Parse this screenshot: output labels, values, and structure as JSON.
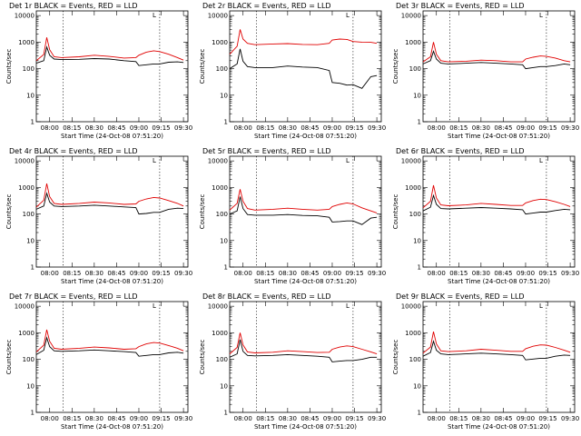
{
  "figure": {
    "x_axis_label": "Start Time (24-Oct-08 07:51:20)",
    "y_axis_label": "Counts/sec",
    "y_tick_labels": [
      "1",
      "10",
      "100",
      "1000",
      "10000"
    ],
    "time_tick_labels": [
      "08:00",
      "08:15",
      "08:30",
      "08:45",
      "09:00",
      "09:15",
      "09:30"
    ],
    "colors": {
      "events": "#000000",
      "lld": "#e00000",
      "axes": "#000000",
      "background": "#ffffff"
    }
  },
  "chart_data": [
    {
      "type": "line",
      "title": "Det 1r BLACK = Events, RED = LLD",
      "xlabel": "Start Time (24-Oct-08 07:51:20)",
      "ylabel": "Counts/sec",
      "x_range": [
        "07:51",
        "09:33"
      ],
      "y_scale": "log",
      "ylim": [
        1,
        15000
      ],
      "markers_top": [
        "L"
      ],
      "vertical_dotted_lines": [
        "08:09",
        "09:14"
      ],
      "x": [
        "07:51",
        "07:56",
        "07:58",
        "08:00",
        "08:03",
        "08:08",
        "08:20",
        "08:30",
        "08:40",
        "08:50",
        "08:58",
        "09:00",
        "09:05",
        "09:10",
        "09:14",
        "09:20",
        "09:26",
        "09:30"
      ],
      "series": [
        {
          "name": "Events",
          "values": [
            160,
            200,
            650,
            320,
            230,
            220,
            225,
            240,
            230,
            200,
            185,
            130,
            140,
            150,
            150,
            175,
            180,
            170
          ]
        },
        {
          "name": "LLD",
          "values": [
            200,
            340,
            1500,
            520,
            280,
            260,
            280,
            320,
            290,
            250,
            260,
            320,
            420,
            470,
            440,
            350,
            260,
            210
          ]
        }
      ]
    },
    {
      "type": "line",
      "title": "Det 2r BLACK = Events, RED = LLD",
      "xlabel": "Start Time (24-Oct-08 07:51:20)",
      "ylabel": "Counts/sec",
      "x_range": [
        "07:51",
        "09:33"
      ],
      "y_scale": "log",
      "ylim": [
        1,
        15000
      ],
      "markers_top": [
        "L"
      ],
      "vertical_dotted_lines": [
        "08:09",
        "09:14"
      ],
      "x": [
        "07:51",
        "07:56",
        "07:58",
        "08:00",
        "08:03",
        "08:08",
        "08:20",
        "08:30",
        "08:40",
        "08:50",
        "08:58",
        "09:00",
        "09:05",
        "09:10",
        "09:14",
        "09:20",
        "09:26",
        "09:30"
      ],
      "series": [
        {
          "name": "Events",
          "values": [
            100,
            150,
            550,
            190,
            120,
            110,
            110,
            125,
            115,
            110,
            85,
            30,
            28,
            24,
            25,
            18,
            50,
            55
          ]
        },
        {
          "name": "LLD",
          "values": [
            350,
            700,
            3000,
            1300,
            900,
            800,
            850,
            880,
            820,
            800,
            900,
            1200,
            1300,
            1250,
            1050,
            1000,
            980,
            900
          ]
        }
      ]
    },
    {
      "type": "line",
      "title": "Det 3r BLACK = Events, RED = LLD",
      "xlabel": "Start Time (24-Oct-08 07:51:20)",
      "ylabel": "Counts/sec",
      "x_range": [
        "07:51",
        "09:33"
      ],
      "y_scale": "log",
      "ylim": [
        1,
        15000
      ],
      "markers_top": [
        "L"
      ],
      "vertical_dotted_lines": [
        "08:09",
        "09:14"
      ],
      "x": [
        "07:51",
        "07:56",
        "07:58",
        "08:00",
        "08:03",
        "08:08",
        "08:20",
        "08:30",
        "08:40",
        "08:50",
        "08:58",
        "09:00",
        "09:05",
        "09:10",
        "09:14",
        "09:20",
        "09:26",
        "09:30"
      ],
      "series": [
        {
          "name": "Events",
          "values": [
            150,
            200,
            450,
            230,
            160,
            150,
            160,
            170,
            160,
            150,
            140,
            100,
            110,
            120,
            120,
            130,
            150,
            140
          ]
        },
        {
          "name": "LLD",
          "values": [
            180,
            280,
            1000,
            350,
            200,
            180,
            190,
            210,
            200,
            180,
            180,
            230,
            270,
            300,
            290,
            250,
            200,
            180
          ]
        }
      ]
    },
    {
      "type": "line",
      "title": "Det 4r BLACK = Events, RED = LLD",
      "xlabel": "Start Time (24-Oct-08 07:51:20)",
      "ylabel": "Counts/sec",
      "x_range": [
        "07:51",
        "09:33"
      ],
      "y_scale": "log",
      "ylim": [
        1,
        15000
      ],
      "markers_top": [
        "L"
      ],
      "vertical_dotted_lines": [
        "08:09",
        "09:14"
      ],
      "x": [
        "07:51",
        "07:56",
        "07:58",
        "08:00",
        "08:03",
        "08:08",
        "08:20",
        "08:30",
        "08:40",
        "08:50",
        "08:58",
        "09:00",
        "09:05",
        "09:10",
        "09:14",
        "09:20",
        "09:26",
        "09:30"
      ],
      "series": [
        {
          "name": "Events",
          "values": [
            150,
            200,
            600,
            280,
            200,
            190,
            200,
            215,
            200,
            185,
            175,
            100,
            105,
            115,
            115,
            150,
            165,
            160
          ]
        },
        {
          "name": "LLD",
          "values": [
            180,
            330,
            1400,
            450,
            250,
            230,
            250,
            280,
            260,
            230,
            240,
            300,
            370,
            420,
            400,
            320,
            250,
            200
          ]
        }
      ]
    },
    {
      "type": "line",
      "title": "Det 5r BLACK = Events, RED = LLD",
      "xlabel": "Start Time (24-Oct-08 07:51:20)",
      "ylabel": "Counts/sec",
      "x_range": [
        "07:51",
        "09:33"
      ],
      "y_scale": "log",
      "ylim": [
        1,
        15000
      ],
      "markers_top": [
        "L"
      ],
      "vertical_dotted_lines": [
        "08:09",
        "09:14"
      ],
      "x": [
        "07:51",
        "07:56",
        "07:58",
        "08:00",
        "08:03",
        "08:08",
        "08:20",
        "08:30",
        "08:40",
        "08:50",
        "08:58",
        "09:00",
        "09:05",
        "09:10",
        "09:14",
        "09:20",
        "09:26",
        "09:30"
      ],
      "series": [
        {
          "name": "Events",
          "values": [
            100,
            130,
            450,
            160,
            95,
            90,
            90,
            95,
            88,
            85,
            75,
            50,
            52,
            55,
            55,
            40,
            70,
            75
          ]
        },
        {
          "name": "LLD",
          "values": [
            140,
            250,
            850,
            300,
            160,
            140,
            150,
            165,
            150,
            140,
            150,
            190,
            230,
            260,
            240,
            170,
            130,
            110
          ]
        }
      ]
    },
    {
      "type": "line",
      "title": "Det 6r BLACK = Events, RED = LLD",
      "xlabel": "Start Time (24-Oct-08 07:51:20)",
      "ylabel": "Counts/sec",
      "x_range": [
        "07:51",
        "09:33"
      ],
      "y_scale": "log",
      "ylim": [
        1,
        15000
      ],
      "markers_top": [
        "L"
      ],
      "vertical_dotted_lines": [
        "08:09",
        "09:14"
      ],
      "x": [
        "07:51",
        "07:56",
        "07:58",
        "08:00",
        "08:03",
        "08:08",
        "08:20",
        "08:30",
        "08:40",
        "08:50",
        "08:58",
        "09:00",
        "09:05",
        "09:10",
        "09:14",
        "09:20",
        "09:26",
        "09:30"
      ],
      "series": [
        {
          "name": "Events",
          "values": [
            130,
            180,
            500,
            230,
            160,
            155,
            165,
            175,
            165,
            155,
            145,
            100,
            108,
            118,
            118,
            135,
            150,
            145
          ]
        },
        {
          "name": "LLD",
          "values": [
            170,
            300,
            1200,
            400,
            220,
            205,
            220,
            250,
            230,
            210,
            210,
            260,
            320,
            360,
            350,
            290,
            230,
            190
          ]
        }
      ]
    },
    {
      "type": "line",
      "title": "Det 7r BLACK = Events, RED = LLD",
      "xlabel": "Start Time (24-Oct-08 07:51:20)",
      "ylabel": "Counts/sec",
      "x_range": [
        "07:51",
        "09:33"
      ],
      "y_scale": "log",
      "ylim": [
        1,
        15000
      ],
      "markers_top": [
        "L"
      ],
      "vertical_dotted_lines": [
        "08:09",
        "09:14"
      ],
      "x": [
        "07:51",
        "07:56",
        "07:58",
        "08:00",
        "08:03",
        "08:08",
        "08:20",
        "08:30",
        "08:40",
        "08:50",
        "08:58",
        "09:00",
        "09:05",
        "09:10",
        "09:14",
        "09:20",
        "09:26",
        "09:30"
      ],
      "series": [
        {
          "name": "Events",
          "values": [
            150,
            220,
            650,
            300,
            210,
            200,
            210,
            225,
            210,
            195,
            180,
            130,
            140,
            150,
            150,
            175,
            185,
            170
          ]
        },
        {
          "name": "LLD",
          "values": [
            190,
            340,
            1300,
            480,
            260,
            240,
            260,
            290,
            270,
            240,
            250,
            300,
            380,
            430,
            410,
            330,
            260,
            210
          ]
        }
      ]
    },
    {
      "type": "line",
      "title": "Det 8r BLACK = Events, RED = LLD",
      "xlabel": "Start Time (24-Oct-08 07:51:20)",
      "ylabel": "Counts/sec",
      "x_range": [
        "07:51",
        "09:33"
      ],
      "y_scale": "log",
      "ylim": [
        1,
        15000
      ],
      "markers_top": [
        "L"
      ],
      "vertical_dotted_lines": [
        "08:09",
        "09:14"
      ],
      "x": [
        "07:51",
        "07:56",
        "07:58",
        "08:00",
        "08:03",
        "08:08",
        "08:20",
        "08:30",
        "08:40",
        "08:50",
        "08:58",
        "09:00",
        "09:05",
        "09:10",
        "09:14",
        "09:20",
        "09:26",
        "09:30"
      ],
      "series": [
        {
          "name": "Events",
          "values": [
            120,
            160,
            550,
            200,
            140,
            135,
            140,
            150,
            140,
            130,
            120,
            80,
            85,
            90,
            90,
            100,
            120,
            120
          ]
        },
        {
          "name": "LLD",
          "values": [
            160,
            280,
            1000,
            350,
            190,
            175,
            185,
            210,
            195,
            180,
            185,
            240,
            290,
            320,
            300,
            240,
            190,
            160
          ]
        }
      ]
    },
    {
      "type": "line",
      "title": "Det 9r BLACK = Events, RED = LLD",
      "xlabel": "Start Time (24-Oct-08 07:51:20)",
      "ylabel": "Counts/sec",
      "x_range": [
        "07:51",
        "09:33"
      ],
      "y_scale": "log",
      "ylim": [
        1,
        15000
      ],
      "markers_top": [
        "L"
      ],
      "vertical_dotted_lines": [
        "08:09",
        "09:14"
      ],
      "x": [
        "07:51",
        "07:56",
        "07:58",
        "08:00",
        "08:03",
        "08:08",
        "08:20",
        "08:30",
        "08:40",
        "08:50",
        "08:58",
        "09:00",
        "09:05",
        "09:10",
        "09:14",
        "09:20",
        "09:26",
        "09:30"
      ],
      "series": [
        {
          "name": "Events",
          "values": [
            130,
            180,
            480,
            220,
            160,
            150,
            160,
            170,
            160,
            150,
            140,
            95,
            102,
            110,
            110,
            130,
            145,
            140
          ]
        },
        {
          "name": "LLD",
          "values": [
            170,
            290,
            1100,
            380,
            210,
            195,
            210,
            240,
            220,
            200,
            200,
            250,
            310,
            350,
            340,
            280,
            220,
            185
          ]
        }
      ]
    }
  ]
}
